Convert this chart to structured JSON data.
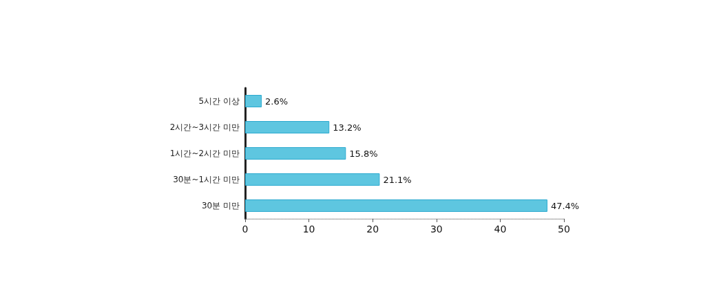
{
  "chart_data": {
    "type": "bar",
    "orientation": "horizontal",
    "categories": [
      "5시간 이상",
      "2시간~3시간 미만",
      "1시간~2시간 미만",
      "30분~1시간 미만",
      "30분 미만"
    ],
    "values": [
      2.6,
      13.2,
      15.8,
      21.1,
      47.4
    ],
    "value_labels": [
      "2.6%",
      "13.2%",
      "15.8%",
      "21.1%",
      "47.4%"
    ],
    "color": "#5ec6e0",
    "xlim": [
      0,
      50
    ],
    "xticks": [
      0,
      10,
      20,
      30,
      40,
      50
    ],
    "grid": false
  }
}
